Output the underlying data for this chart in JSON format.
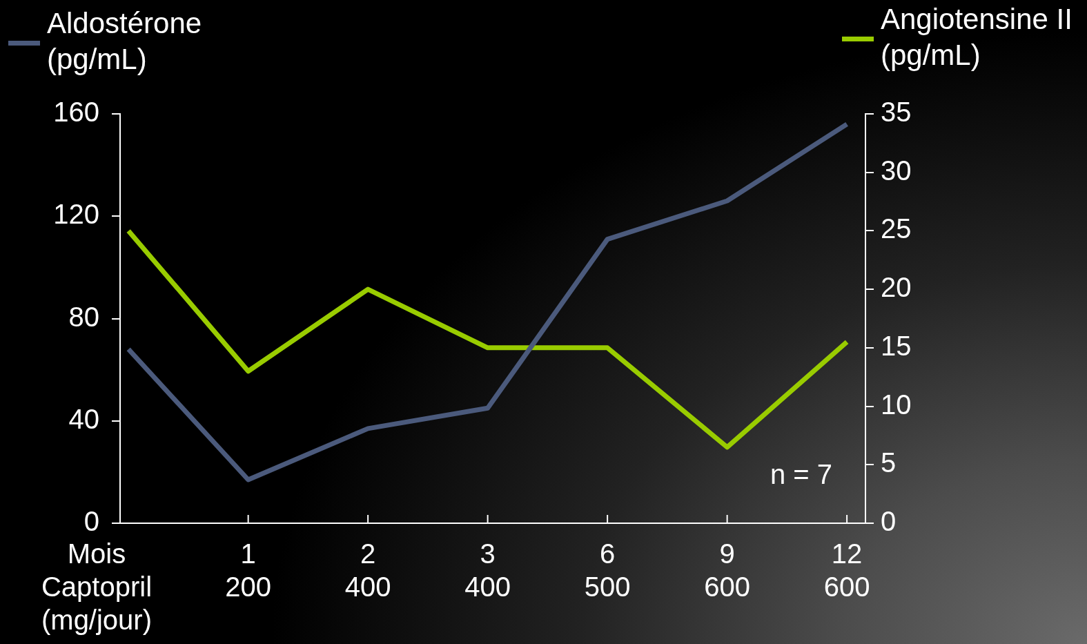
{
  "chart_data": {
    "type": "line",
    "categories": [
      null,
      "1\n200",
      "2\n400",
      "3\n400",
      "6\n500",
      "9\n600",
      "12\n600"
    ],
    "xlabel": "Mois\nCaptopril (mg/jour)",
    "series": [
      {
        "name": "Aldostérone (pg/mL)",
        "color": "#4b5a7c",
        "values": [
          68,
          17,
          37,
          45,
          111,
          126,
          156
        ]
      },
      {
        "name": "Angiotensine II (pg/mL)",
        "color": "#99cc00",
        "axis": "y2",
        "values": [
          25,
          13,
          20,
          15,
          15,
          6.5,
          15.5
        ]
      }
    ],
    "ylim": [
      0,
      160
    ],
    "yticks": [
      0,
      40,
      80,
      120,
      160
    ],
    "y2lim": [
      0,
      35
    ],
    "y2ticks": [
      0,
      5,
      10,
      15,
      20,
      25,
      30,
      35
    ],
    "annotations": [
      "n = 7"
    ],
    "legend": "top",
    "marker": "none"
  }
}
